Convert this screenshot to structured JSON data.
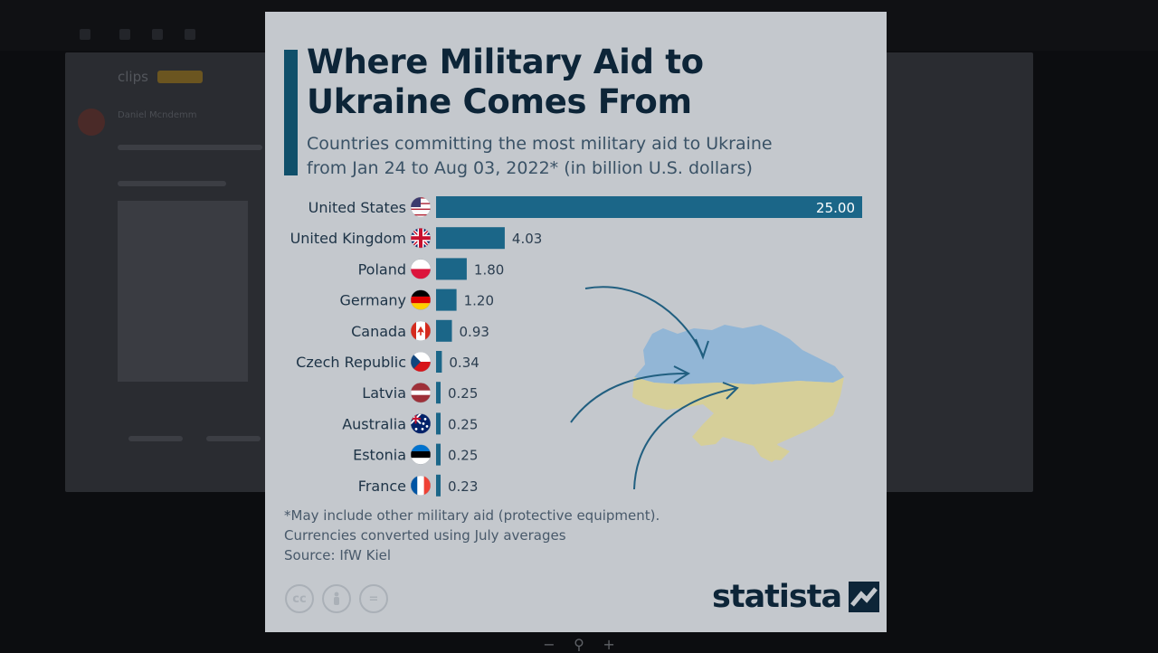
{
  "card": {
    "title": "Where Military Aid to Ukraine Comes From",
    "subtitle_line1": "Countries committing the most military aid to Ukraine",
    "subtitle_line2": "from Jan 24 to Aug 03, 2022* (in billion U.S. dollars)",
    "footnote_line1": "*May include other military aid (protective equipment).",
    "footnote_line2": "Currencies converted using July averages",
    "source": "Source: IfW Kiel",
    "brand": "statista"
  },
  "license_icons": [
    "cc-icon",
    "person-icon",
    "equals-icon"
  ],
  "zoom_controls": {
    "minus": "−",
    "zoom_reset": "⚲",
    "plus": "+"
  },
  "background": {
    "subject": "clips",
    "sender": "Daniel Mcndemm"
  },
  "colors": {
    "bar": "#1b6688",
    "title": "#0d2538",
    "ukraine_blue": "#92b6d6",
    "ukraine_yellow": "#d6cf99",
    "arrow": "#215f80"
  },
  "chart_data": {
    "type": "bar",
    "orientation": "horizontal",
    "title": "Where Military Aid to Ukraine Comes From",
    "subtitle": "Countries committing the most military aid to Ukraine from Jan 24 to Aug 03, 2022* (in billion U.S. dollars)",
    "categories": [
      "United States",
      "United Kingdom",
      "Poland",
      "Germany",
      "Canada",
      "Czech Republic",
      "Latvia",
      "Australia",
      "Estonia",
      "France"
    ],
    "values": [
      25.0,
      4.03,
      1.8,
      1.2,
      0.93,
      0.34,
      0.25,
      0.25,
      0.25,
      0.23
    ],
    "value_labels": [
      "25.00",
      "4.03",
      "1.80",
      "1.20",
      "0.93",
      "0.34",
      "0.25",
      "0.25",
      "0.25",
      "0.23"
    ],
    "flags": [
      "us",
      "uk",
      "pl",
      "de",
      "ca",
      "cz",
      "lv",
      "au",
      "ee",
      "fr"
    ],
    "xlim": [
      0,
      25
    ],
    "grid": false,
    "legend": "none"
  }
}
